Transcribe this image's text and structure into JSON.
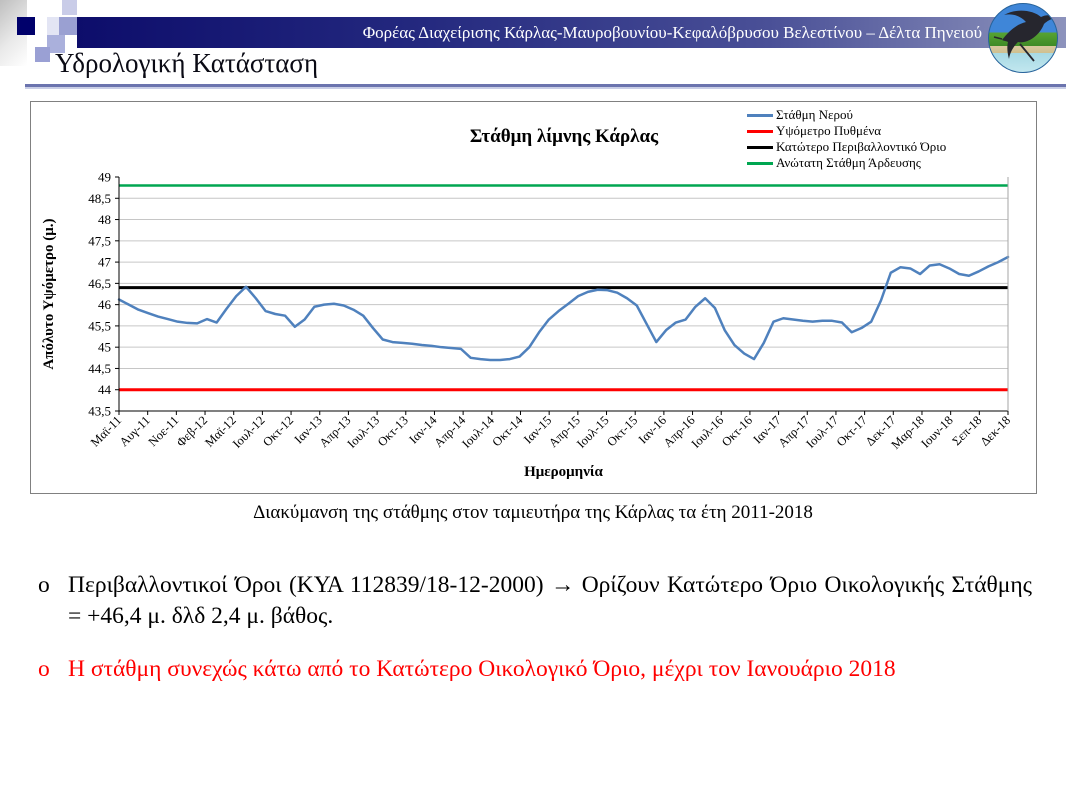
{
  "header": {
    "org_name": "Φορέας Διαχείρισης Κάρλας-Μαυροβουνίου-Κεφαλόβρυσου Βελεστίνου – Δέλτα Πηνειού",
    "slide_title": "Υδρολογική Κατάσταση"
  },
  "colors": {
    "band_dark": "#0d0d6b",
    "band_light": "#8d93bc",
    "rule": "#6b74ae",
    "series_blue": "#4F81BD",
    "ref_red": "#FF0000",
    "ref_black": "#000000",
    "ref_green": "#00A651",
    "gridline": "#C6C6C6",
    "bullet_red": "#FF0000"
  },
  "chart_data": {
    "type": "line",
    "title": "Στάθμη λίμνης Κάρλας",
    "xlabel": "Ημερομηνία",
    "ylabel": "Απόλυτο Υψόμετρο (μ.)",
    "ylim": [
      43.5,
      49
    ],
    "ytick_step": 0.5,
    "grid": true,
    "legend_position": "top-right",
    "ytick_labels": [
      "49",
      "48,5",
      "48",
      "47,5",
      "47",
      "46,5",
      "46",
      "45,5",
      "45",
      "44,5",
      "44",
      "43,5"
    ],
    "xtick_labels": [
      "Μαϊ-11",
      "Αυγ-11",
      "Νοε-11",
      "Φεβ-12",
      "Μαϊ-12",
      "Ιουλ-12",
      "Οκτ-12",
      "Ιαν-13",
      "Απρ-13",
      "Ιουλ-13",
      "Οκτ-13",
      "Ιαν-14",
      "Απρ-14",
      "Ιουλ-14",
      "Οκτ-14",
      "Ιαν-15",
      "Απρ-15",
      "Ιουλ-15",
      "Οκτ-15",
      "Ιαν-16",
      "Απρ-16",
      "Ιουλ-16",
      "Οκτ-16",
      "Ιαν-17",
      "Απρ-17",
      "Ιουλ-17",
      "Οκτ-17",
      "Δεκ-17",
      "Μαρ-18",
      "Ιουν-18",
      "Σεπ-18",
      "Δεκ-18"
    ],
    "series": [
      {
        "name": "Στάθμη Νερού",
        "color": "#4F81BD",
        "stroke_width": 2.5,
        "values": [
          46.12,
          46.0,
          45.88,
          45.8,
          45.72,
          45.66,
          45.6,
          45.57,
          45.56,
          45.66,
          45.58,
          45.9,
          46.2,
          46.42,
          46.15,
          45.85,
          45.78,
          45.74,
          45.48,
          45.65,
          45.95,
          46.0,
          46.02,
          45.98,
          45.88,
          45.74,
          45.45,
          45.18,
          45.12,
          45.1,
          45.08,
          45.05,
          45.03,
          45.0,
          44.98,
          44.96,
          44.75,
          44.72,
          44.7,
          44.7,
          44.72,
          44.78,
          45.0,
          45.35,
          45.65,
          45.85,
          46.02,
          46.2,
          46.3,
          46.35,
          46.34,
          46.28,
          46.15,
          45.98,
          45.55,
          45.12,
          45.4,
          45.58,
          45.65,
          45.95,
          46.15,
          45.92,
          45.4,
          45.05,
          44.85,
          44.72,
          45.1,
          45.6,
          45.68,
          45.65,
          45.62,
          45.6,
          45.62,
          45.62,
          45.58,
          45.35,
          45.45,
          45.6,
          46.1,
          46.75,
          46.88,
          46.85,
          46.72,
          46.92,
          46.95,
          46.85,
          46.72,
          46.68,
          46.78,
          46.9,
          47.0,
          47.12
        ]
      }
    ],
    "ref_lines": [
      {
        "name": "Υψόμετρο Πυθμένα",
        "value": 44.0,
        "color": "#FF0000",
        "stroke_width": 3
      },
      {
        "name": "Κατώτερο Περιβαλλοντικό Όριο",
        "value": 46.4,
        "color": "#000000",
        "stroke_width": 3
      },
      {
        "name": "Ανώτατη Στάθμη Άρδευσης",
        "value": 48.8,
        "color": "#00A651",
        "stroke_width": 2.5
      }
    ],
    "legend_items": [
      {
        "label": "Στάθμη Νερού",
        "color": "#4F81BD"
      },
      {
        "label": "Υψόμετρο Πυθμένα",
        "color": "#FF0000"
      },
      {
        "label": "Κατώτερο Περιβαλλοντικό Όριο",
        "color": "#000000"
      },
      {
        "label": "Ανώτατη Στάθμη Άρδευσης",
        "color": "#00A651"
      }
    ]
  },
  "caption": "Διακύμανση της στάθμης στον ταμιευτήρα της Κάρλας τα έτη 2011-2018",
  "bullets": [
    {
      "marker": "o",
      "text": "Περιβαλλοντικοί Όροι (ΚΥΑ 112839/18-12-2000) → Ορίζουν Κατώτερο Όριο Οικολογικής Στάθμης = +46,4 μ. δλδ 2,4 μ. βάθος.",
      "color": "#000000"
    },
    {
      "marker": "o",
      "text": "Η στάθμη συνεχώς κάτω από το Κατώτερο Οικολογικό Όριο, μέχρι τον Ιανουάριο 2018",
      "color": "#FF0000"
    }
  ]
}
